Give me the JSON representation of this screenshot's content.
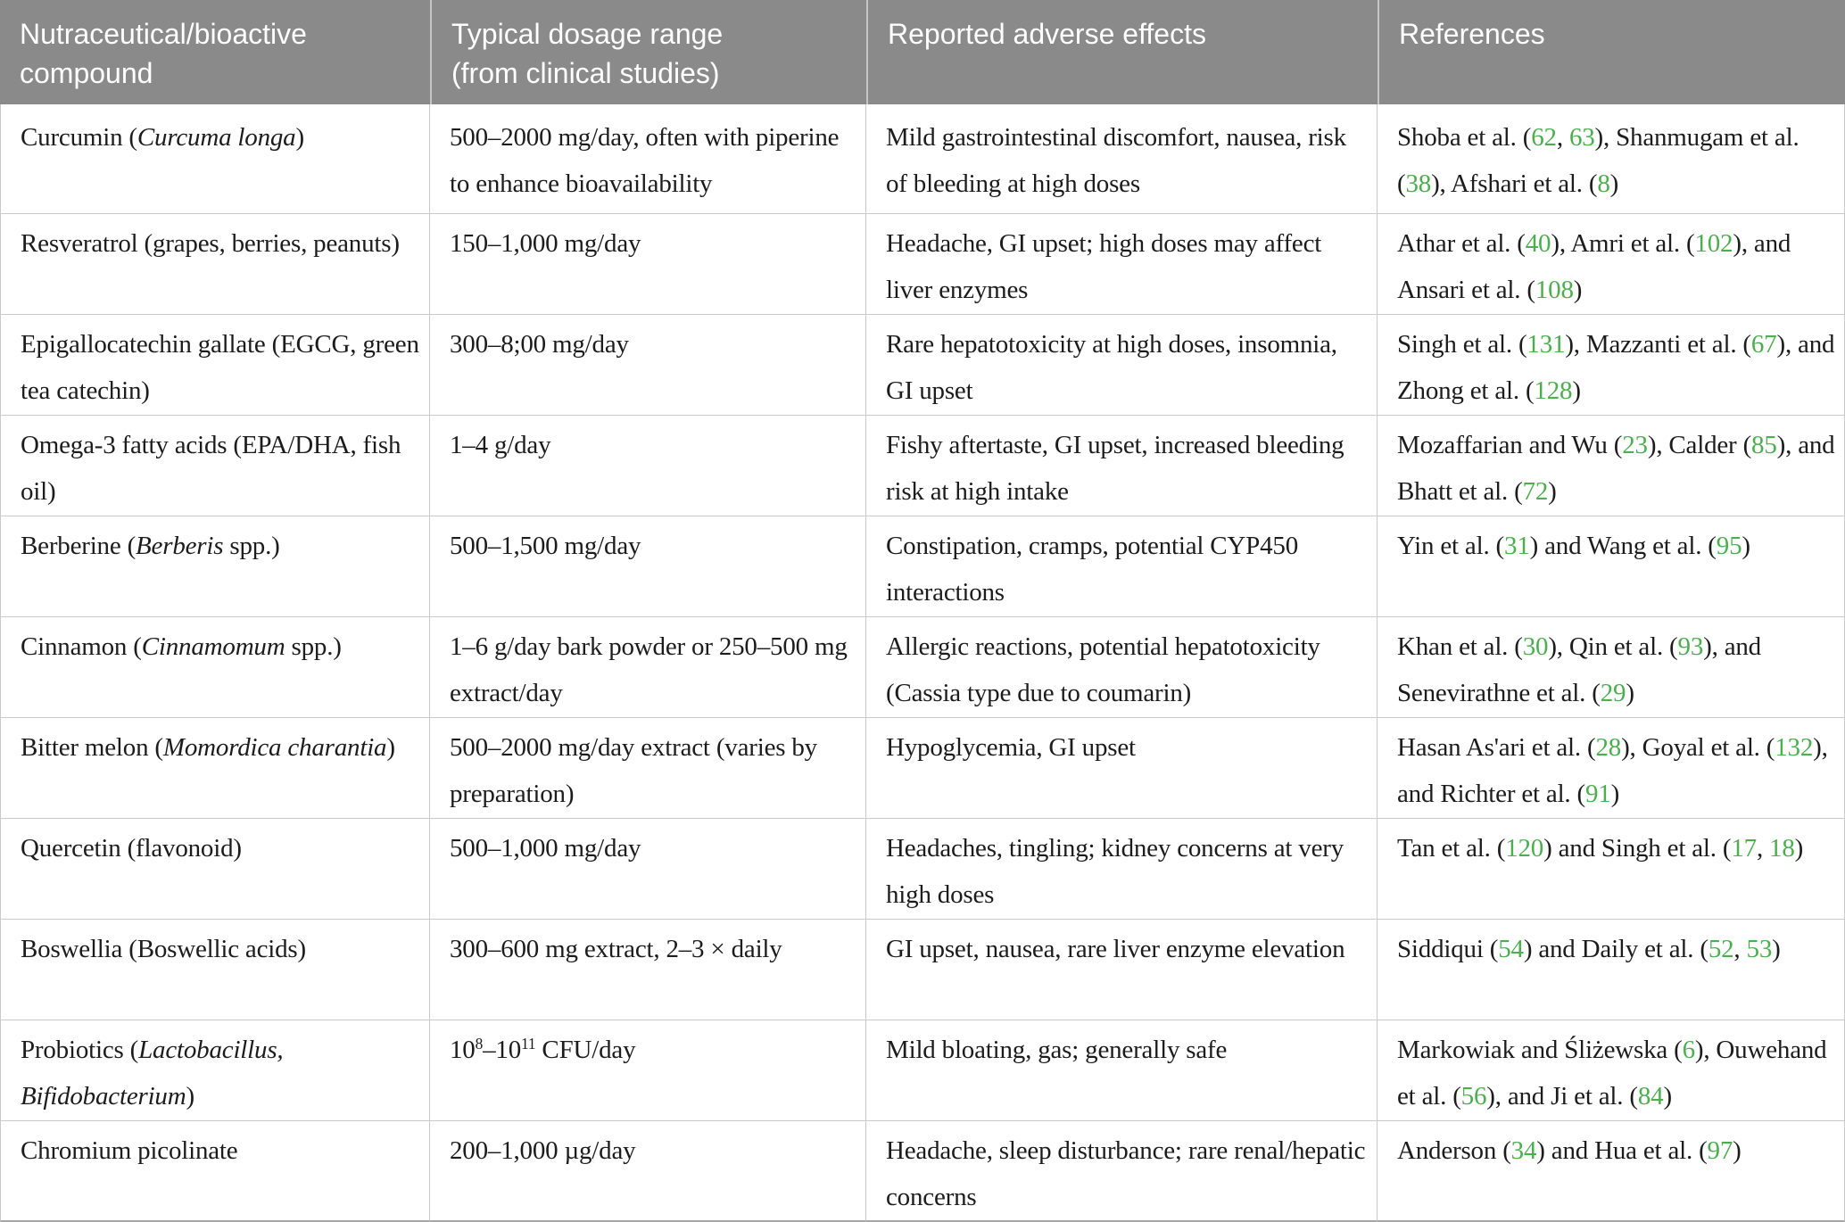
{
  "table": {
    "columns": [
      {
        "label": "Nutraceutical/bioactive\ncompound"
      },
      {
        "label": "Typical dosage range\n(from clinical studies)"
      },
      {
        "label": "Reported adverse effects"
      },
      {
        "label": "References"
      }
    ],
    "rows": [
      {
        "compound": "Curcumin (*Curcuma longa*)",
        "dosage": "500–2000 mg/day, often with piperine to enhance bioavailability",
        "adverse_effects": "Mild gastrointestinal discomfort, nausea, risk of bleeding at high doses",
        "references": "Shoba et al. ({62}, {63}), Shanmugam et al. ({38}), Afshari et al. ({8})"
      },
      {
        "compound": "Resveratrol (grapes, berries, peanuts)",
        "dosage": "150–1,000 mg/day",
        "adverse_effects": "Headache, GI upset; high doses may affect liver enzymes",
        "references": "Athar et al. ({40}), Amri et al. ({102}), and Ansari et al. ({108})"
      },
      {
        "compound": "Epigallocatechin gallate (EGCG, green tea catechin)",
        "dosage": "300–8;00 mg/day",
        "adverse_effects": "Rare hepatotoxicity at high doses, insomnia, GI upset",
        "references": "Singh et al. ({131}), Mazzanti et al. ({67}), and Zhong et al. ({128})"
      },
      {
        "compound": "Omega-3 fatty acids (EPA/DHA, fish oil)",
        "dosage": "1–4 g/day",
        "adverse_effects": "Fishy aftertaste, GI upset, increased bleeding risk at high intake",
        "references": "Mozaffarian and Wu ({23}), Calder ({85}), and Bhatt et al. ({72})"
      },
      {
        "compound": "Berberine (*Berberis* spp.)",
        "dosage": "500–1,500 mg/day",
        "adverse_effects": "Constipation, cramps, potential CYP450 interactions",
        "references": "Yin et al. ({31}) and Wang et al. ({95})"
      },
      {
        "compound": "Cinnamon (*Cinnamomum* spp.)",
        "dosage": "1–6 g/day bark powder or 250–500 mg extract/day",
        "adverse_effects": "Allergic reactions, potential hepatotoxicity (Cassia type due to coumarin)",
        "references": "Khan et al. ({30}), Qin et al. ({93}), and Senevirathne et al. ({29})"
      },
      {
        "compound": "Bitter melon (*Momordica charantia*)",
        "dosage": "500–2000 mg/day extract (varies by preparation)",
        "adverse_effects": "Hypoglycemia, GI upset",
        "references": "Hasan As'ari et al. ({28}), Goyal et al. ({132}), and Richter et al. ({91})"
      },
      {
        "compound": "Quercetin (flavonoid)",
        "dosage": "500–1,000 mg/day",
        "adverse_effects": "Headaches, tingling; kidney concerns at very high doses",
        "references": "Tan et al. ({120}) and Singh et al. ({17}, {18})"
      },
      {
        "compound": "Boswellia (Boswellic acids)",
        "dosage": "300–600 mg extract, 2–3 × daily",
        "adverse_effects": "GI upset, nausea, rare liver enzyme elevation",
        "references": "Siddiqui ({54}) and Daily et al. ({52}, {53})"
      },
      {
        "compound": "Probiotics (*Lactobacillus,* *Bifidobacterium*)",
        "dosage": "10^{8}–10^{11} CFU/day",
        "adverse_effects": "Mild bloating, gas; generally safe",
        "references": "Markowiak and Śliżewska ({6}), Ouwehand et al. ({56}), and Ji et al. ({84})"
      },
      {
        "compound": "Chromium picolinate",
        "dosage": "200–1,000 µg/day",
        "adverse_effects": "Headache, sleep disturbance; rare renal/hepatic concerns",
        "references": "Anderson ({34}) and Hua et al. ({97})"
      }
    ]
  },
  "colors": {
    "header_bg": "#8a8a8a",
    "header_text": "#ffffff",
    "body_text": "#1c1c1c",
    "citation_green": "#4cae4f",
    "grid_line": "#c9c9c9",
    "table_bottom_border": "#a6a6a6"
  }
}
